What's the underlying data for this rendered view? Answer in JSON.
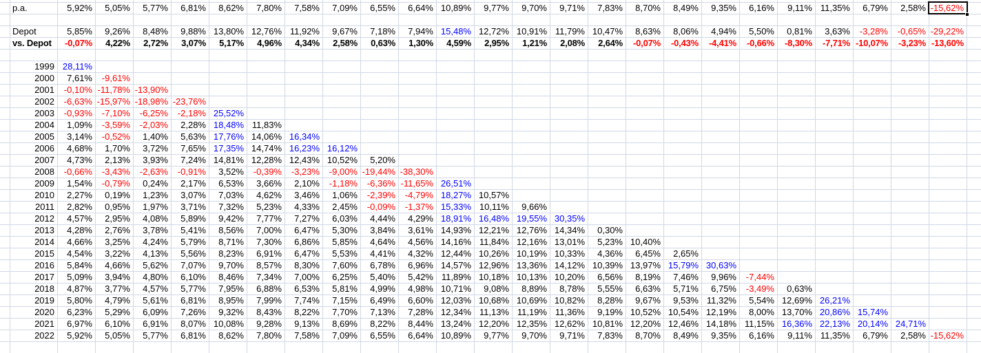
{
  "sheet": {
    "locale_number_format": "de",
    "colors": {
      "text": "#000000",
      "negative": "#ff0000",
      "highlight": "#0000ff",
      "gridline": "#d0d7e5",
      "selection_border": "#000000"
    },
    "highlight_threshold_percent": 15,
    "summary_rows": [
      {
        "label": "p.a.",
        "bold": false,
        "values": [
          "5,92%",
          "5,05%",
          "5,77%",
          "6,81%",
          "8,62%",
          "7,80%",
          "7,58%",
          "7,09%",
          "6,55%",
          "6,64%",
          "10,89%",
          "9,77%",
          "9,70%",
          "9,71%",
          "7,83%",
          "8,70%",
          "8,49%",
          "9,35%",
          "6,16%",
          "9,11%",
          "11,35%",
          "6,79%",
          "2,58%",
          "-15,62%"
        ]
      },
      {
        "label": "Depot",
        "bold": false,
        "values": [
          "5,85%",
          "9,26%",
          "8,48%",
          "9,88%",
          "13,80%",
          "12,76%",
          "11,92%",
          "9,67%",
          "7,18%",
          "7,94%",
          "15,48%",
          "12,72%",
          "10,91%",
          "11,79%",
          "10,47%",
          "8,63%",
          "8,06%",
          "4,94%",
          "5,50%",
          "0,81%",
          "3,63%",
          "-3,28%",
          "-0,65%",
          "-29,22%"
        ]
      },
      {
        "label": "vs. Depot",
        "bold": true,
        "values": [
          "-0,07%",
          "4,22%",
          "2,72%",
          "3,07%",
          "5,17%",
          "4,96%",
          "4,34%",
          "2,58%",
          "0,63%",
          "1,30%",
          "4,59%",
          "2,95%",
          "1,21%",
          "2,08%",
          "2,64%",
          "-0,07%",
          "-0,43%",
          "-4,41%",
          "-0,66%",
          "-8,30%",
          "-7,71%",
          "-10,07%",
          "-3,23%",
          "-13,60%"
        ]
      }
    ],
    "selection": {
      "summary_row_index": 0,
      "value_index": 23
    },
    "matrix_rows": [
      {
        "year": "1999",
        "values": [
          "28,11%"
        ]
      },
      {
        "year": "2000",
        "values": [
          "7,61%",
          "-9,61%"
        ]
      },
      {
        "year": "2001",
        "values": [
          "-0,10%",
          "-11,78%",
          "-13,90%"
        ]
      },
      {
        "year": "2002",
        "values": [
          "-6,63%",
          "-15,97%",
          "-18,98%",
          "-23,76%"
        ]
      },
      {
        "year": "2003",
        "values": [
          "-0,93%",
          "-7,10%",
          "-6,25%",
          "-2,18%",
          "25,52%"
        ]
      },
      {
        "year": "2004",
        "values": [
          "1,09%",
          "-3,59%",
          "-2,03%",
          "2,28%",
          "18,48%",
          "11,83%"
        ]
      },
      {
        "year": "2005",
        "values": [
          "3,14%",
          "-0,52%",
          "1,40%",
          "5,63%",
          "17,76%",
          "14,06%",
          "16,34%"
        ]
      },
      {
        "year": "2006",
        "values": [
          "4,68%",
          "1,70%",
          "3,72%",
          "7,65%",
          "17,35%",
          "14,74%",
          "16,23%",
          "16,12%"
        ]
      },
      {
        "year": "2007",
        "values": [
          "4,73%",
          "2,13%",
          "3,93%",
          "7,24%",
          "14,81%",
          "12,28%",
          "12,43%",
          "10,52%",
          "5,20%"
        ]
      },
      {
        "year": "2008",
        "values": [
          "-0,66%",
          "-3,43%",
          "-2,63%",
          "-0,91%",
          "3,52%",
          "-0,39%",
          "-3,23%",
          "-9,00%",
          "-19,44%",
          "-38,30%"
        ]
      },
      {
        "year": "2009",
        "values": [
          "1,54%",
          "-0,79%",
          "0,24%",
          "2,17%",
          "6,53%",
          "3,66%",
          "2,10%",
          "-1,18%",
          "-6,36%",
          "-11,65%",
          "26,51%"
        ]
      },
      {
        "year": "2010",
        "values": [
          "2,27%",
          "0,19%",
          "1,23%",
          "3,07%",
          "7,03%",
          "4,62%",
          "3,46%",
          "1,06%",
          "-2,39%",
          "-4,79%",
          "18,27%",
          "10,57%"
        ]
      },
      {
        "year": "2011",
        "values": [
          "2,82%",
          "0,95%",
          "1,97%",
          "3,71%",
          "7,32%",
          "5,23%",
          "4,33%",
          "2,45%",
          "-0,09%",
          "-1,37%",
          "15,33%",
          "10,11%",
          "9,66%"
        ]
      },
      {
        "year": "2012",
        "values": [
          "4,57%",
          "2,95%",
          "4,08%",
          "5,89%",
          "9,42%",
          "7,77%",
          "7,27%",
          "6,03%",
          "4,44%",
          "4,29%",
          "18,91%",
          "16,48%",
          "19,55%",
          "30,35%"
        ]
      },
      {
        "year": "2013",
        "values": [
          "4,28%",
          "2,76%",
          "3,78%",
          "5,41%",
          "8,56%",
          "7,00%",
          "6,47%",
          "5,30%",
          "3,84%",
          "3,61%",
          "14,93%",
          "12,21%",
          "12,76%",
          "14,34%",
          "0,30%"
        ]
      },
      {
        "year": "2014",
        "values": [
          "4,66%",
          "3,25%",
          "4,24%",
          "5,79%",
          "8,71%",
          "7,30%",
          "6,86%",
          "5,85%",
          "4,64%",
          "4,56%",
          "14,16%",
          "11,84%",
          "12,16%",
          "13,01%",
          "5,23%",
          "10,40%"
        ]
      },
      {
        "year": "2015",
        "values": [
          "4,54%",
          "3,22%",
          "4,13%",
          "5,56%",
          "8,23%",
          "6,91%",
          "6,47%",
          "5,53%",
          "4,41%",
          "4,32%",
          "12,44%",
          "10,26%",
          "10,19%",
          "10,33%",
          "4,36%",
          "6,45%",
          "2,65%"
        ]
      },
      {
        "year": "2016",
        "values": [
          "5,84%",
          "4,66%",
          "5,62%",
          "7,07%",
          "9,70%",
          "8,57%",
          "8,30%",
          "7,60%",
          "6,78%",
          "6,96%",
          "14,57%",
          "12,96%",
          "13,36%",
          "14,12%",
          "10,39%",
          "13,97%",
          "15,79%",
          "30,63%"
        ]
      },
      {
        "year": "2017",
        "values": [
          "5,09%",
          "3,94%",
          "4,80%",
          "6,10%",
          "8,46%",
          "7,34%",
          "7,00%",
          "6,25%",
          "5,40%",
          "5,42%",
          "11,89%",
          "10,18%",
          "10,13%",
          "10,20%",
          "6,56%",
          "8,19%",
          "7,46%",
          "9,96%",
          "-7,44%"
        ]
      },
      {
        "year": "2018",
        "values": [
          "4,87%",
          "3,77%",
          "4,57%",
          "5,77%",
          "7,95%",
          "6,88%",
          "6,53%",
          "5,81%",
          "4,99%",
          "4,98%",
          "10,71%",
          "9,08%",
          "8,89%",
          "8,78%",
          "5,55%",
          "6,63%",
          "5,71%",
          "6,75%",
          "-3,49%",
          "0,63%"
        ]
      },
      {
        "year": "2019",
        "values": [
          "5,80%",
          "4,79%",
          "5,61%",
          "6,81%",
          "8,95%",
          "7,99%",
          "7,74%",
          "7,15%",
          "6,49%",
          "6,60%",
          "12,03%",
          "10,68%",
          "10,69%",
          "10,82%",
          "8,28%",
          "9,67%",
          "9,53%",
          "11,32%",
          "5,54%",
          "12,69%",
          "26,21%"
        ]
      },
      {
        "year": "2020",
        "values": [
          "6,23%",
          "5,29%",
          "6,09%",
          "7,26%",
          "9,32%",
          "8,43%",
          "8,22%",
          "7,70%",
          "7,13%",
          "7,28%",
          "12,34%",
          "11,13%",
          "11,19%",
          "11,36%",
          "9,19%",
          "10,52%",
          "10,54%",
          "12,19%",
          "8,00%",
          "13,70%",
          "20,86%",
          "15,74%"
        ]
      },
      {
        "year": "2021",
        "values": [
          "6,97%",
          "6,10%",
          "6,91%",
          "8,07%",
          "10,08%",
          "9,28%",
          "9,13%",
          "8,69%",
          "8,22%",
          "8,44%",
          "13,24%",
          "12,20%",
          "12,35%",
          "12,62%",
          "10,81%",
          "12,20%",
          "12,46%",
          "14,18%",
          "11,15%",
          "16,36%",
          "22,13%",
          "20,14%",
          "24,71%"
        ]
      },
      {
        "year": "2022",
        "values": [
          "5,92%",
          "5,05%",
          "5,77%",
          "6,81%",
          "8,62%",
          "7,80%",
          "7,58%",
          "7,09%",
          "6,55%",
          "6,64%",
          "10,89%",
          "9,77%",
          "9,70%",
          "9,71%",
          "7,83%",
          "8,70%",
          "8,49%",
          "9,35%",
          "6,16%",
          "9,11%",
          "11,35%",
          "6,79%",
          "2,58%",
          "-15,62%"
        ]
      }
    ]
  }
}
